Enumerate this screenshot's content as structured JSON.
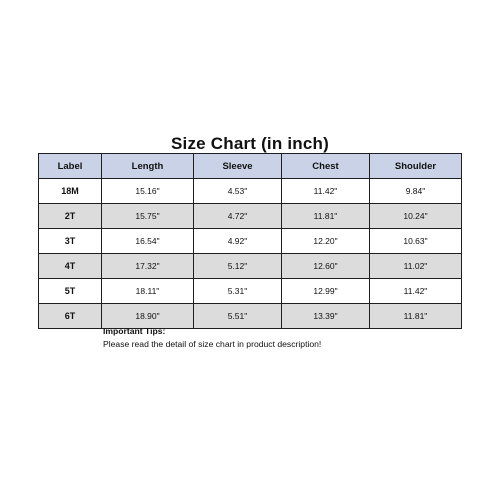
{
  "title": "Size Chart (in inch)",
  "table": {
    "headers": [
      "Label",
      "Length",
      "Sleeve",
      "Chest",
      "Shoulder"
    ],
    "rows": [
      {
        "label": "18M",
        "length": "15.16\"",
        "sleeve": "4.53\"",
        "chest": "11.42\"",
        "shoulder": "9.84\""
      },
      {
        "label": "2T",
        "length": "15.75\"",
        "sleeve": "4.72\"",
        "chest": "11.81\"",
        "shoulder": "10.24\""
      },
      {
        "label": "3T",
        "length": "16.54\"",
        "sleeve": "4.92\"",
        "chest": "12.20\"",
        "shoulder": "10.63\""
      },
      {
        "label": "4T",
        "length": "17.32\"",
        "sleeve": "5.12\"",
        "chest": "12.60\"",
        "shoulder": "11.02\""
      },
      {
        "label": "5T",
        "length": "18.11\"",
        "sleeve": "5.31\"",
        "chest": "12.99\"",
        "shoulder": "11.42\""
      },
      {
        "label": "6T",
        "length": "18.90\"",
        "sleeve": "5.51\"",
        "chest": "13.39\"",
        "shoulder": "11.81\""
      }
    ]
  },
  "tips": {
    "title": "Important Tips:",
    "text": "Please read the detail of size chart in product description!"
  },
  "colors": {
    "header_bg": "#c9d2e6",
    "alt_row_bg": "#dcdcdc",
    "border": "#1f1f1f"
  }
}
